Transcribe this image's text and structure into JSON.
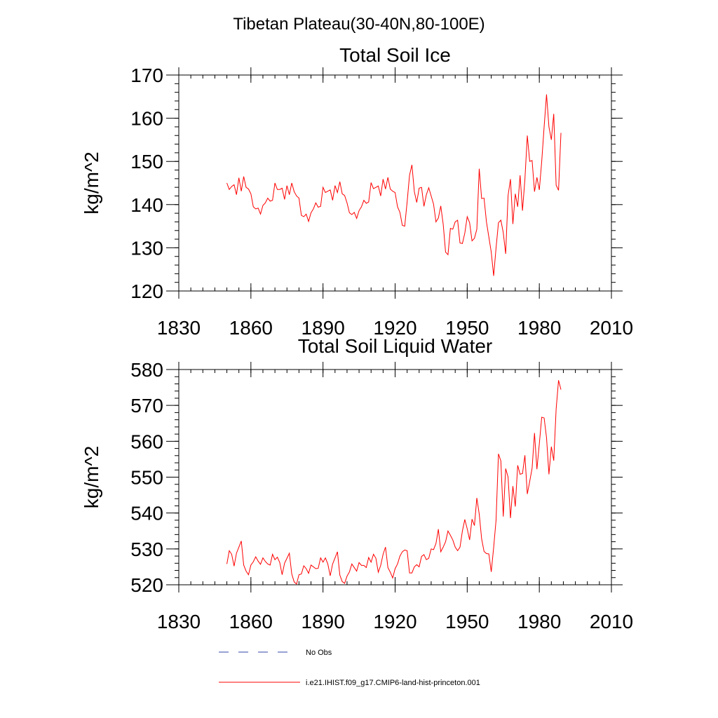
{
  "figure": {
    "suptitle": "Tibetan Plateau(30-40N,80-100E)"
  },
  "chart_data": [
    {
      "type": "line",
      "title": "Total Soil Ice",
      "xlabel": "",
      "ylabel": "kg/m^2",
      "xlim": [
        1830,
        2010
      ],
      "ylim": [
        120,
        170
      ],
      "xticks": [
        1830,
        1860,
        1890,
        1920,
        1950,
        1980,
        2010
      ],
      "yticks": [
        120,
        130,
        140,
        150,
        160,
        170
      ],
      "grid": false,
      "series": [
        {
          "name": "i.e21.IHIST.f09_g17.CMIP6-land-hist-princeton.001",
          "color": "#ff0000",
          "x": [
            1850,
            1851,
            1852,
            1853,
            1854,
            1855,
            1856,
            1857,
            1858,
            1859,
            1860,
            1861,
            1862,
            1863,
            1864,
            1865,
            1866,
            1867,
            1868,
            1869,
            1870,
            1871,
            1872,
            1873,
            1874,
            1875,
            1876,
            1877,
            1878,
            1879,
            1880,
            1881,
            1882,
            1883,
            1884,
            1885,
            1886,
            1887,
            1888,
            1889,
            1890,
            1891,
            1892,
            1893,
            1894,
            1895,
            1896,
            1897,
            1898,
            1899,
            1900,
            1901,
            1902,
            1903,
            1904,
            1905,
            1906,
            1907,
            1908,
            1909,
            1910,
            1911,
            1912,
            1913,
            1914,
            1915,
            1916,
            1917,
            1918,
            1919,
            1920,
            1921,
            1922,
            1923,
            1924,
            1925,
            1926,
            1927,
            1928,
            1929,
            1930,
            1931,
            1932,
            1933,
            1934,
            1935,
            1936,
            1937,
            1938,
            1939,
            1940,
            1941,
            1942,
            1943,
            1944,
            1945,
            1946,
            1947,
            1948,
            1949,
            1950,
            1951,
            1952,
            1953,
            1954,
            1955,
            1956,
            1957,
            1958,
            1959,
            1960,
            1961,
            1962,
            1963,
            1964,
            1965,
            1966,
            1967,
            1968,
            1969,
            1970,
            1971,
            1972,
            1973,
            1974,
            1975,
            1976,
            1977,
            1978,
            1979,
            1980,
            1981,
            1982,
            1983,
            1984,
            1985,
            1986,
            1987,
            1988,
            1989
          ],
          "values": [
            145.0,
            143.5,
            144.2,
            144.6,
            142.3,
            146.2,
            143.1,
            146.5,
            144.0,
            143.6,
            142.5,
            139.5,
            139.0,
            139.2,
            137.8,
            139.8,
            140.4,
            141.5,
            140.8,
            141.0,
            145.0,
            143.5,
            143.5,
            143.8,
            141.2,
            144.4,
            142.3,
            145.0,
            143.0,
            142.0,
            141.5,
            137.5,
            137.2,
            137.8,
            136.1,
            138.1,
            139.0,
            140.4,
            139.4,
            139.6,
            144.0,
            142.8,
            143.1,
            143.4,
            141.0,
            144.4,
            142.8,
            145.3,
            142.5,
            142.1,
            140.4,
            138.1,
            137.7,
            138.2,
            136.8,
            138.6,
            139.5,
            141.0,
            140.3,
            140.6,
            145.1,
            143.7,
            144.0,
            144.3,
            142.0,
            145.9,
            143.6,
            146.3,
            143.6,
            143.1,
            142.8,
            139.5,
            138.2,
            135.2,
            135.0,
            140.6,
            146.8,
            149.2,
            143.0,
            140.5,
            143.8,
            144.0,
            139.6,
            142.3,
            143.9,
            142.0,
            140.1,
            136.0,
            136.9,
            139.7,
            135.5,
            129.0,
            128.4,
            134.5,
            134.3,
            136.0,
            136.4,
            131.1,
            131.0,
            133.4,
            137.2,
            135.8,
            131.6,
            132.2,
            134.3,
            148.3,
            141.4,
            141.5,
            136.0,
            132.5,
            129.0,
            123.5,
            130.0,
            135.8,
            136.4,
            133.5,
            128.6,
            142.1,
            145.9,
            135.5,
            142.5,
            139.5,
            146.8,
            138.6,
            145.8,
            156.0,
            150.0,
            150.2,
            143.0,
            146.3,
            143.4,
            150.0,
            158.0,
            165.5,
            158.0,
            155.0,
            161.0,
            144.5,
            143.3,
            156.6
          ]
        }
      ]
    },
    {
      "type": "line",
      "title": "Total Soil Liquid Water",
      "xlabel": "",
      "ylabel": "kg/m^2",
      "xlim": [
        1830,
        2010
      ],
      "ylim": [
        520,
        580
      ],
      "xticks": [
        1830,
        1860,
        1890,
        1920,
        1950,
        1980,
        2010
      ],
      "yticks": [
        520,
        530,
        540,
        550,
        560,
        570,
        580
      ],
      "grid": false,
      "series": [
        {
          "name": "i.e21.IHIST.f09_g17.CMIP6-land-hist-princeton.001",
          "color": "#ff0000",
          "x": [
            1850,
            1851,
            1852,
            1853,
            1854,
            1855,
            1856,
            1857,
            1858,
            1859,
            1860,
            1861,
            1862,
            1863,
            1864,
            1865,
            1866,
            1867,
            1868,
            1869,
            1870,
            1871,
            1872,
            1873,
            1874,
            1875,
            1876,
            1877,
            1878,
            1879,
            1880,
            1881,
            1882,
            1883,
            1884,
            1885,
            1886,
            1887,
            1888,
            1889,
            1890,
            1891,
            1892,
            1893,
            1894,
            1895,
            1896,
            1897,
            1898,
            1899,
            1900,
            1901,
            1902,
            1903,
            1904,
            1905,
            1906,
            1907,
            1908,
            1909,
            1910,
            1911,
            1912,
            1913,
            1914,
            1915,
            1916,
            1917,
            1918,
            1919,
            1920,
            1921,
            1922,
            1923,
            1924,
            1925,
            1926,
            1927,
            1928,
            1929,
            1930,
            1931,
            1932,
            1933,
            1934,
            1935,
            1936,
            1937,
            1938,
            1939,
            1940,
            1941,
            1942,
            1943,
            1944,
            1945,
            1946,
            1947,
            1948,
            1949,
            1950,
            1951,
            1952,
            1953,
            1954,
            1955,
            1956,
            1957,
            1958,
            1959,
            1960,
            1961,
            1962,
            1963,
            1964,
            1965,
            1966,
            1967,
            1968,
            1969,
            1970,
            1971,
            1972,
            1973,
            1974,
            1975,
            1976,
            1977,
            1978,
            1979,
            1980,
            1981,
            1982,
            1983,
            1984,
            1985,
            1986,
            1987,
            1988,
            1989
          ],
          "values": [
            525.8,
            529.5,
            528.5,
            525.2,
            528.8,
            530.5,
            532.2,
            525.5,
            523.8,
            522.8,
            525.5,
            526.4,
            527.8,
            526.6,
            525.7,
            527.5,
            526.5,
            525.8,
            525.5,
            528.5,
            527.0,
            527.7,
            526.2,
            522.8,
            526.0,
            527.4,
            528.8,
            523.0,
            520.8,
            520.2,
            522.8,
            523.0,
            525.3,
            524.5,
            523.2,
            525.5,
            525.0,
            524.5,
            524.6,
            527.5,
            526.3,
            527.5,
            525.8,
            522.5,
            525.8,
            527.5,
            529.2,
            522.7,
            520.9,
            520.4,
            522.4,
            523.6,
            525.8,
            524.8,
            523.8,
            526.2,
            525.4,
            525.4,
            524.8,
            527.6,
            526.3,
            528.5,
            527.4,
            523.5,
            525.4,
            528.5,
            530.5,
            524.8,
            523.5,
            521.9,
            524.5,
            525.8,
            528.0,
            529.2,
            529.7,
            529.5,
            523.3,
            523.3,
            525.0,
            525.6,
            525.0,
            527.9,
            528.4,
            527.0,
            527.4,
            530.0,
            529.8,
            531.5,
            535.5,
            529.2,
            530.5,
            532.0,
            535.0,
            533.8,
            532.5,
            530.5,
            529.5,
            530.5,
            535.0,
            538.2,
            535.6,
            532.5,
            538.3,
            536.5,
            544.2,
            539.7,
            532.8,
            529.3,
            528.7,
            528.6,
            523.6,
            530.4,
            538.0,
            556.5,
            554.5,
            539.0,
            552.4,
            550.0,
            538.6,
            547.5,
            541.8,
            553.3,
            550.8,
            551.0,
            556.1,
            545.3,
            548.8,
            552.5,
            562.3,
            552.2,
            559.3,
            566.7,
            566.5,
            561.0,
            550.8,
            558.5,
            554.6,
            569.0,
            577.0,
            574.4
          ]
        }
      ]
    }
  ],
  "legend": {
    "items": [
      {
        "label": "No Obs",
        "color": "#3344aa",
        "style": "dashed"
      },
      {
        "label": "i.e21.IHIST.f09_g17.CMIP6-land-hist-princeton.001",
        "color": "#ff0000",
        "style": "solid"
      }
    ]
  }
}
